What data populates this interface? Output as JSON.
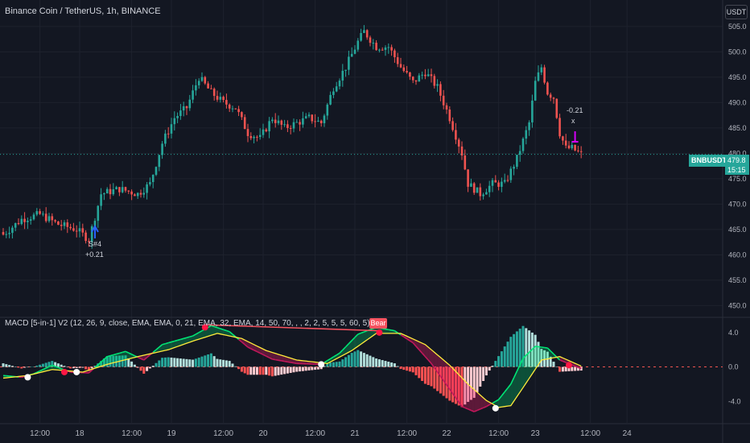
{
  "header": {
    "title": "Binance Coin / TetherUS, 1h, BINANCE",
    "currency": "USDT"
  },
  "indicator": {
    "title": "MACD [5-in-1] V2 (12, 26, 9, close, EMA, EMA, 0, 21, EMA, 32, EMA, 14, 50, 70, , , 2, 2, 5, 5, 5, 60, 5)",
    "bear_label": "Bear"
  },
  "price_label": {
    "symbol": "BNBUSDT",
    "price": "479.8",
    "countdown": "15:15"
  },
  "annotations": {
    "signal_label": "S#4",
    "signal_value": "+0.21",
    "exit_value": "-0.21",
    "exit_mark": "x"
  },
  "colors": {
    "background": "#131722",
    "up": "#26a69a",
    "down": "#ef5350",
    "macd_line": "#00e676",
    "signal_line": "#ffeb3b",
    "bear": "#f7525f",
    "buy_arrow": "#2962ff",
    "sell_arrow": "#d500f9"
  },
  "chart_data": [
    {
      "type": "candlestick",
      "title": "Binance Coin / TetherUS, 1h, BINANCE",
      "ylim": [
        448,
        508
      ],
      "y_ticks": [
        "505.0",
        "500.0",
        "495.0",
        "490.0",
        "485.0",
        "480.0",
        "475.0",
        "470.0",
        "465.0",
        "460.0",
        "455.0",
        "450.0"
      ],
      "y_tick_values": [
        505,
        500,
        495,
        490,
        485,
        480,
        475,
        470,
        465,
        460,
        455,
        450
      ],
      "last_price": 479.8,
      "anchors": [
        {
          "i": 0,
          "v": 464
        },
        {
          "i": 6,
          "v": 467
        },
        {
          "i": 12,
          "v": 468
        },
        {
          "i": 18,
          "v": 466
        },
        {
          "i": 24,
          "v": 465
        },
        {
          "i": 28,
          "v": 463
        },
        {
          "i": 32,
          "v": 472
        },
        {
          "i": 38,
          "v": 473
        },
        {
          "i": 44,
          "v": 472
        },
        {
          "i": 48,
          "v": 474
        },
        {
          "i": 52,
          "v": 482
        },
        {
          "i": 56,
          "v": 487
        },
        {
          "i": 60,
          "v": 489
        },
        {
          "i": 64,
          "v": 495
        },
        {
          "i": 68,
          "v": 492
        },
        {
          "i": 72,
          "v": 490
        },
        {
          "i": 76,
          "v": 489
        },
        {
          "i": 80,
          "v": 484
        },
        {
          "i": 84,
          "v": 483
        },
        {
          "i": 88,
          "v": 487
        },
        {
          "i": 92,
          "v": 485
        },
        {
          "i": 96,
          "v": 486
        },
        {
          "i": 100,
          "v": 487
        },
        {
          "i": 104,
          "v": 486
        },
        {
          "i": 108,
          "v": 493
        },
        {
          "i": 112,
          "v": 497
        },
        {
          "i": 116,
          "v": 502
        },
        {
          "i": 118,
          "v": 504
        },
        {
          "i": 122,
          "v": 501
        },
        {
          "i": 126,
          "v": 501
        },
        {
          "i": 130,
          "v": 497
        },
        {
          "i": 134,
          "v": 494
        },
        {
          "i": 138,
          "v": 496
        },
        {
          "i": 142,
          "v": 493
        },
        {
          "i": 146,
          "v": 487
        },
        {
          "i": 150,
          "v": 480
        },
        {
          "i": 152,
          "v": 474
        },
        {
          "i": 156,
          "v": 472
        },
        {
          "i": 160,
          "v": 474
        },
        {
          "i": 164,
          "v": 474
        },
        {
          "i": 168,
          "v": 479
        },
        {
          "i": 172,
          "v": 486
        },
        {
          "i": 174,
          "v": 494
        },
        {
          "i": 176,
          "v": 497
        },
        {
          "i": 178,
          "v": 492
        },
        {
          "i": 180,
          "v": 491
        },
        {
          "i": 182,
          "v": 484
        },
        {
          "i": 184,
          "v": 481
        },
        {
          "i": 186,
          "v": 481
        },
        {
          "i": 189,
          "v": 479.8
        }
      ]
    },
    {
      "type": "macd",
      "title": "MACD [5-in-1] V2 (12, 26, 9, close, EMA, EMA, 0, 21, EMA, 32, EMA, 14, 50, 70, , , 2, 2, 5, 5, 5, 60, 5)",
      "ylim": [
        -6.5,
        5.2
      ],
      "y_ticks": [
        "4.0",
        "0.0",
        "-4.0"
      ],
      "y_tick_values": [
        4,
        0,
        -4
      ],
      "series": [
        {
          "name": "MACD",
          "anchors": [
            {
              "i": 0,
              "v": -1.0
            },
            {
              "i": 6,
              "v": -1.2
            },
            {
              "i": 10,
              "v": -0.8
            },
            {
              "i": 16,
              "v": 0.2
            },
            {
              "i": 22,
              "v": -0.6
            },
            {
              "i": 28,
              "v": -0.7
            },
            {
              "i": 34,
              "v": 1.2
            },
            {
              "i": 40,
              "v": 1.8
            },
            {
              "i": 46,
              "v": 0.8
            },
            {
              "i": 52,
              "v": 2.6
            },
            {
              "i": 58,
              "v": 3.2
            },
            {
              "i": 62,
              "v": 3.6
            },
            {
              "i": 68,
              "v": 4.8
            },
            {
              "i": 74,
              "v": 4.1
            },
            {
              "i": 80,
              "v": 2.3
            },
            {
              "i": 88,
              "v": 0.9
            },
            {
              "i": 96,
              "v": 0.4
            },
            {
              "i": 104,
              "v": 0.3
            },
            {
              "i": 110,
              "v": 1.6
            },
            {
              "i": 116,
              "v": 3.8
            },
            {
              "i": 122,
              "v": 4.6
            },
            {
              "i": 128,
              "v": 4.2
            },
            {
              "i": 134,
              "v": 2.8
            },
            {
              "i": 140,
              "v": 0.4
            },
            {
              "i": 146,
              "v": -2.6
            },
            {
              "i": 150,
              "v": -4.6
            },
            {
              "i": 154,
              "v": -5.2
            },
            {
              "i": 158,
              "v": -4.6
            },
            {
              "i": 162,
              "v": -3.8
            },
            {
              "i": 166,
              "v": -2.0
            },
            {
              "i": 170,
              "v": 1.0
            },
            {
              "i": 174,
              "v": 2.4
            },
            {
              "i": 178,
              "v": 2.2
            },
            {
              "i": 182,
              "v": 0.8
            },
            {
              "i": 189,
              "v": -0.2
            }
          ]
        },
        {
          "name": "Signal",
          "anchors": [
            {
              "i": 0,
              "v": -1.3
            },
            {
              "i": 8,
              "v": -1.0
            },
            {
              "i": 16,
              "v": -0.3
            },
            {
              "i": 26,
              "v": -0.6
            },
            {
              "i": 34,
              "v": 0.3
            },
            {
              "i": 44,
              "v": 1.2
            },
            {
              "i": 54,
              "v": 2.0
            },
            {
              "i": 62,
              "v": 3.0
            },
            {
              "i": 70,
              "v": 3.9
            },
            {
              "i": 78,
              "v": 3.3
            },
            {
              "i": 86,
              "v": 1.9
            },
            {
              "i": 96,
              "v": 0.8
            },
            {
              "i": 106,
              "v": 0.4
            },
            {
              "i": 114,
              "v": 1.9
            },
            {
              "i": 122,
              "v": 3.9
            },
            {
              "i": 130,
              "v": 3.9
            },
            {
              "i": 138,
              "v": 2.6
            },
            {
              "i": 146,
              "v": 0.2
            },
            {
              "i": 152,
              "v": -2.0
            },
            {
              "i": 158,
              "v": -3.9
            },
            {
              "i": 162,
              "v": -4.7
            },
            {
              "i": 166,
              "v": -4.5
            },
            {
              "i": 170,
              "v": -2.4
            },
            {
              "i": 176,
              "v": 0.8
            },
            {
              "i": 182,
              "v": 1.2
            },
            {
              "i": 189,
              "v": 0.1
            }
          ]
        }
      ],
      "markers": [
        {
          "i": 8,
          "v": -1.2,
          "color": "#ffffff"
        },
        {
          "i": 20,
          "v": -0.6,
          "color": "#ff1744"
        },
        {
          "i": 24,
          "v": -0.6,
          "color": "#ffffff"
        },
        {
          "i": 66,
          "v": 4.6,
          "color": "#ff1744"
        },
        {
          "i": 104,
          "v": 0.3,
          "color": "#ffffff"
        },
        {
          "i": 123,
          "v": 4.0,
          "color": "#ff1744"
        },
        {
          "i": 161,
          "v": -4.8,
          "color": "#ffffff"
        },
        {
          "i": 185,
          "v": 0.2,
          "color": "#ff1744"
        }
      ]
    }
  ],
  "x_axis": {
    "labels": [
      "12:00",
      "18",
      "12:00",
      "19",
      "12:00",
      "20",
      "12:00",
      "21",
      "12:00",
      "22",
      "12:00",
      "23",
      "12:00",
      "24"
    ],
    "positions_index": [
      12,
      25,
      42,
      55,
      72,
      85,
      102,
      115,
      132,
      145,
      162,
      174,
      192,
      204
    ]
  }
}
